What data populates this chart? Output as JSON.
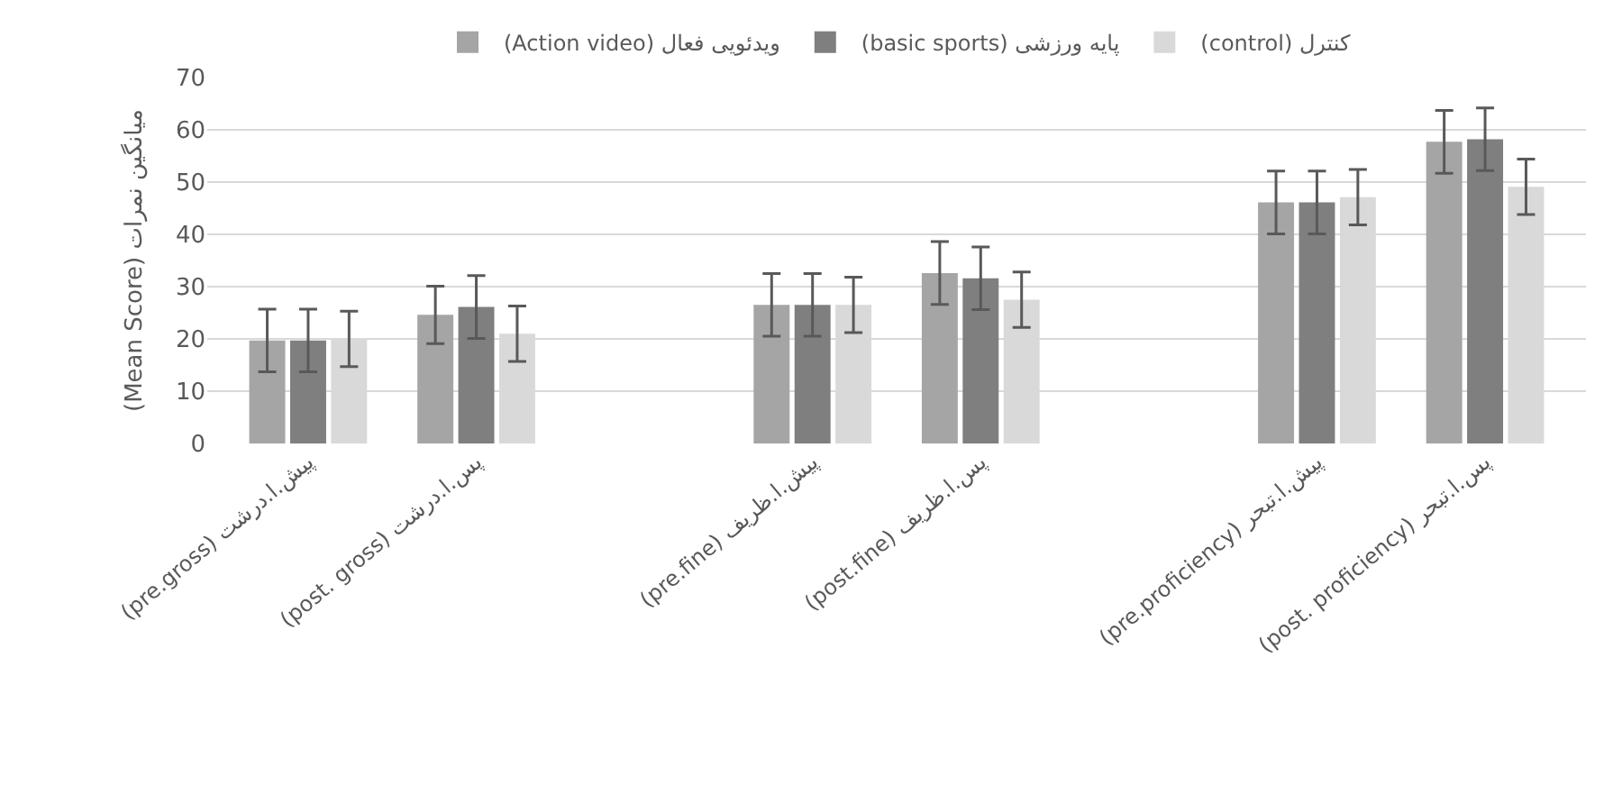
{
  "chart_data": {
    "type": "bar",
    "ylabel": "(Mean Score) میانگین نمرات",
    "categories": [
      "(pre.gross) پیش.ا.درشت",
      "(post. gross) پس.ا.درشت",
      null,
      "(pre.fine) پیش.ا.ظریف",
      "(post.fine) پس.ا.ظریف",
      null,
      "(pre.proficiency) پیش.ا.تبحر",
      "(post. proficiency) پس.ا.تبحر"
    ],
    "series": [
      {
        "name": "(Action video) ویدئویی فعال",
        "color": "#a5a5a5",
        "values": [
          19.7,
          24.6,
          null,
          26.5,
          32.6,
          null,
          46.1,
          57.7
        ],
        "errors": [
          6,
          5.5,
          null,
          6,
          6,
          null,
          6,
          6
        ]
      },
      {
        "name": "(basic sports) پایه ورزشی",
        "color": "#7f7f7f",
        "values": [
          19.7,
          26.1,
          null,
          26.5,
          31.6,
          null,
          46.1,
          58.2
        ],
        "errors": [
          6,
          6,
          null,
          6,
          6,
          null,
          6,
          6
        ]
      },
      {
        "name": "(control) کنترل",
        "color": "#d9d9d9",
        "values": [
          20,
          21,
          null,
          26.5,
          27.5,
          null,
          47.1,
          49.1
        ],
        "errors": [
          5.3,
          5.3,
          null,
          5.3,
          5.3,
          null,
          5.3,
          5.3
        ]
      }
    ],
    "ylim": [
      0,
      70
    ],
    "yticks": [
      0,
      10,
      20,
      30,
      40,
      50,
      60,
      70
    ],
    "grid": "y",
    "legend": "top"
  }
}
